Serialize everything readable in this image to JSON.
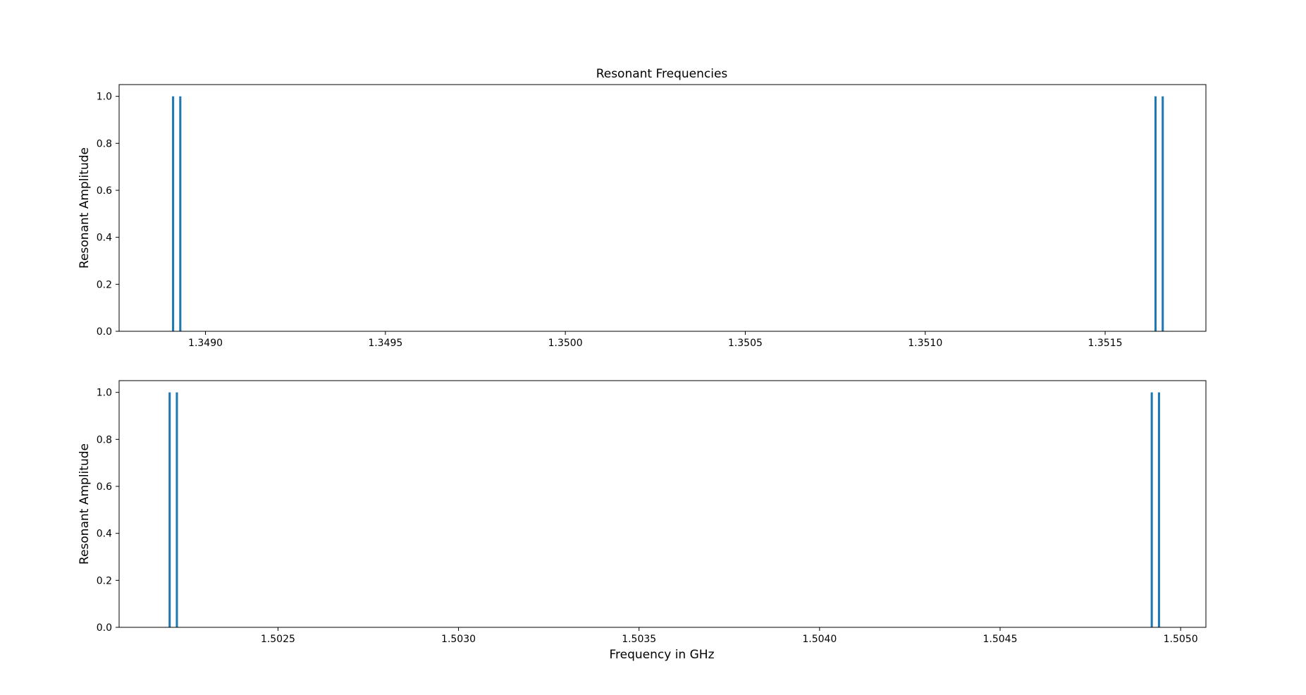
{
  "figure": {
    "title": "Resonant Frequencies",
    "xlabel": "Frequency in GHz",
    "ylabel": "Resonant Amplitude",
    "bar_color": "#1f77b4"
  },
  "chart_data": [
    {
      "type": "bar",
      "title": "Resonant Frequencies",
      "xlabel": "",
      "ylabel": "Resonant Amplitude",
      "xlim": [
        1.34876,
        1.35178
      ],
      "ylim": [
        0.0,
        1.05
      ],
      "xticks": [
        1.349,
        1.3495,
        1.35,
        1.3505,
        1.351,
        1.3515
      ],
      "xtick_labels": [
        "1.3490",
        "1.3495",
        "1.3500",
        "1.3505",
        "1.3510",
        "1.3515"
      ],
      "yticks": [
        0.0,
        0.2,
        0.4,
        0.6,
        0.8,
        1.0
      ],
      "ytick_labels": [
        "0.0",
        "0.2",
        "0.4",
        "0.6",
        "0.8",
        "1.0"
      ],
      "x": [
        1.34891,
        1.34893,
        1.35164,
        1.35166
      ],
      "values": [
        1.0,
        1.0,
        1.0,
        1.0
      ],
      "bar_width": 6e-06,
      "grid": false
    },
    {
      "type": "bar",
      "title": "",
      "xlabel": "Frequency in GHz",
      "ylabel": "Resonant Amplitude",
      "xlim": [
        1.50206,
        1.50507
      ],
      "ylim": [
        0.0,
        1.05
      ],
      "xticks": [
        1.5025,
        1.503,
        1.5035,
        1.504,
        1.5045,
        1.505
      ],
      "xtick_labels": [
        "1.5025",
        "1.5030",
        "1.5035",
        "1.5040",
        "1.5045",
        "1.5050"
      ],
      "yticks": [
        0.0,
        0.2,
        0.4,
        0.6,
        0.8,
        1.0
      ],
      "ytick_labels": [
        "0.0",
        "0.2",
        "0.4",
        "0.6",
        "0.8",
        "1.0"
      ],
      "x": [
        1.5022,
        1.50222,
        1.50492,
        1.50494
      ],
      "values": [
        1.0,
        1.0,
        1.0,
        1.0
      ],
      "bar_width": 6e-06,
      "grid": false
    }
  ]
}
